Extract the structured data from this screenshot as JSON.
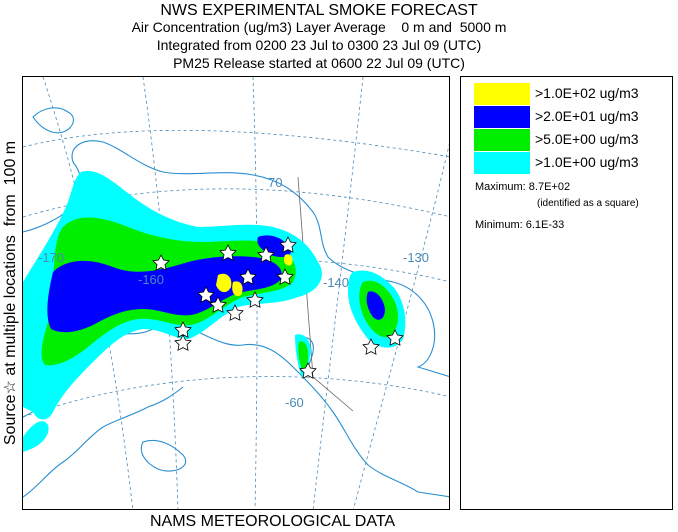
{
  "header": {
    "title": "NWS EXPERIMENTAL SMOKE FORECAST",
    "line2": "Air Concentration (ug/m3) Layer Average    0 m and  5000 m",
    "line3": "Integrated from 0200 23 Jul to 0300 23 Jul 09 (UTC)",
    "line4": "PM25 Release started at 0600 22 Jul 09 (UTC)"
  },
  "side_label": "Source☆ at multiple locations  from  100 m",
  "bottom_label": "NAMS METEOROLOGICAL DATA",
  "legend": {
    "items": [
      {
        "label": ">1.0E+02 ug/m3",
        "color": "#ffff00"
      },
      {
        "label": ">2.0E+01 ug/m3",
        "color": "#0000ff"
      },
      {
        "label": ">5.0E+00 ug/m3",
        "color": "#00ee00"
      },
      {
        "label": ">1.0E+00 ug/m3",
        "color": "#00ffff"
      }
    ],
    "maximum": "Maximum: 8.7E+02",
    "maximum_note": "(identified as a square)",
    "minimum": "Minimum: 6.1E-33"
  },
  "map": {
    "grid_labels": [
      "70",
      "-170",
      "-160",
      "-140",
      "-130",
      "-60"
    ],
    "coast_color": "#2a8fd0",
    "grid_color": "#4a8ab8"
  }
}
